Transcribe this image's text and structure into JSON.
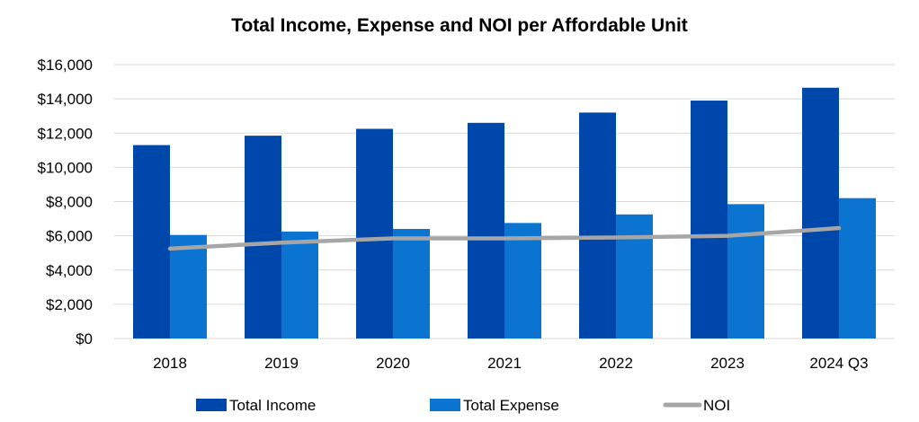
{
  "chart_data": {
    "type": "bar",
    "title": "Total Income, Expense and NOI per Affordable Unit",
    "categories": [
      "2018",
      "2019",
      "2020",
      "2021",
      "2022",
      "2023",
      "2024 Q3"
    ],
    "series": [
      {
        "name": "Total Income",
        "type": "bar",
        "color": "#0047AB",
        "values": [
          11300,
          11850,
          12250,
          12600,
          13200,
          13900,
          14650
        ]
      },
      {
        "name": "Total Expense",
        "type": "bar",
        "color": "#0B74D0",
        "values": [
          6050,
          6250,
          6400,
          6750,
          7250,
          7850,
          8200
        ]
      },
      {
        "name": "NOI",
        "type": "line",
        "color": "#A6A6A6",
        "values": [
          5250,
          5600,
          5850,
          5850,
          5900,
          6000,
          6450
        ]
      }
    ],
    "y_ticks": [
      "$0",
      "$2,000",
      "$4,000",
      "$6,000",
      "$8,000",
      "$10,000",
      "$12,000",
      "$14,000",
      "$16,000"
    ],
    "ylim": [
      0,
      16000
    ],
    "grid": true,
    "legend_position": "bottom",
    "xlabel": "",
    "ylabel": ""
  }
}
